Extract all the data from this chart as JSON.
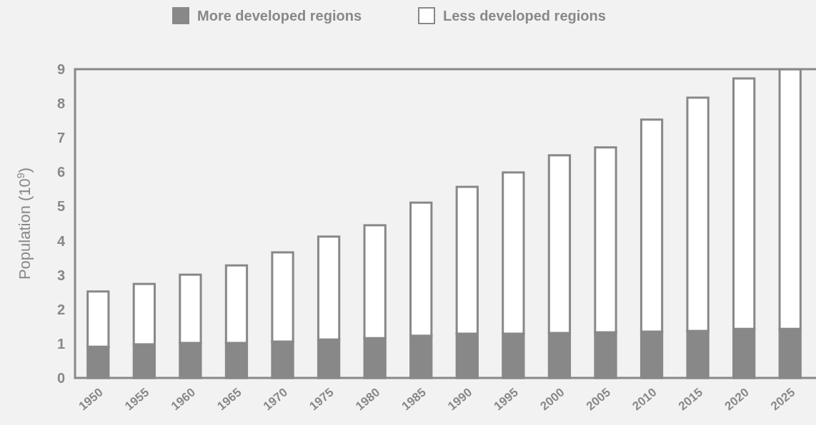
{
  "chart_data": {
    "type": "bar",
    "stacked": true,
    "ylabel": "Population (10$^{9}$)",
    "categories": [
      "1950",
      "1955",
      "1960",
      "1965",
      "1970",
      "1975",
      "1980",
      "1985",
      "1990",
      "1995",
      "2000",
      "2005",
      "2010",
      "2015",
      "2020",
      "2025"
    ],
    "series": [
      {
        "name": "More developed regions",
        "color": "#888888",
        "values": [
          0.91,
          0.98,
          1.02,
          1.02,
          1.06,
          1.12,
          1.16,
          1.23,
          1.29,
          1.29,
          1.31,
          1.33,
          1.35,
          1.37,
          1.43,
          1.43
        ]
      },
      {
        "name": "Less developed regions",
        "color": "#ffffff",
        "values": [
          1.61,
          1.76,
          1.99,
          2.26,
          2.6,
          3.0,
          3.29,
          3.88,
          4.28,
          4.7,
          5.18,
          5.39,
          6.18,
          6.8,
          7.3,
          7.57
        ]
      }
    ],
    "ylim": [
      0,
      9
    ],
    "yticks": [
      0,
      1,
      2,
      3,
      4,
      5,
      6,
      7,
      8,
      9
    ],
    "legend": "top",
    "grid": false
  }
}
